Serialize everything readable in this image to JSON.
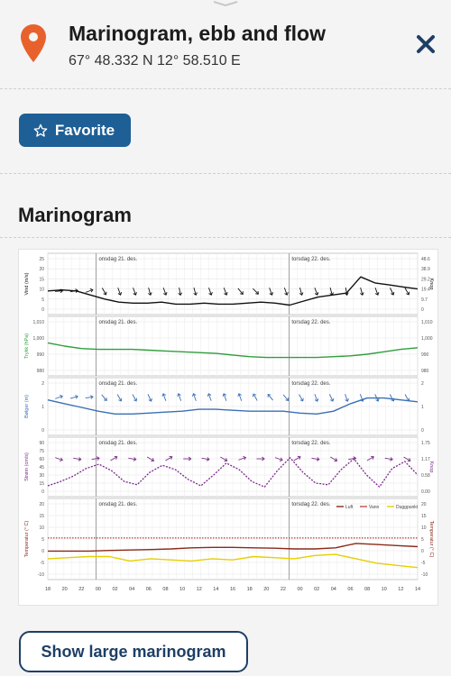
{
  "header": {
    "title": "Marinogram, ebb and flow",
    "coordinates": "67° 48.332 N 12° 58.510 E",
    "pin_icon": "location-pin-icon",
    "close_icon": "close-icon"
  },
  "favorite": {
    "label": "Favorite",
    "icon": "star-outline-icon"
  },
  "section_title": "Marinogram",
  "large_button_label": "Show large marinogram",
  "colors": {
    "accent": "#1e5f95",
    "pin": "#e8612c",
    "close": "#1e3f66",
    "wind": "#111111",
    "pressure": "#2f9e3c",
    "waves": "#3a6fb5",
    "current": "#7a2a8a",
    "air": "#8b2a1a",
    "water": "#c0504d",
    "dew": "#e6cf00"
  },
  "chart_data": {
    "type": "line",
    "day_labels": [
      "onsdag 21. des.",
      "torsdag 22. des."
    ],
    "hour_ticks": [
      "18",
      "20",
      "22",
      "00",
      "02",
      "04",
      "06",
      "08",
      "10",
      "12",
      "14",
      "16",
      "18",
      "20",
      "22",
      "00",
      "02",
      "04",
      "06",
      "08",
      "10",
      "12",
      "14"
    ],
    "panels": [
      {
        "name": "wind",
        "ylabel": "Vind (m/s)",
        "ylabel_right": "Knop",
        "left_ticks": [
          "25",
          "20",
          "15",
          "10",
          "5",
          "0"
        ],
        "right_ticks": [
          "48.6",
          "38.9",
          "29.2",
          "19.4",
          "9.7",
          "0"
        ],
        "ylim": [
          0,
          25
        ],
        "values": [
          9,
          9.5,
          9,
          7,
          5,
          3.5,
          3,
          3,
          3.5,
          2.5,
          2.5,
          3,
          2.5,
          2.5,
          3,
          3.5,
          3,
          2,
          4,
          6,
          7,
          8,
          16,
          13,
          12,
          11,
          10
        ]
      },
      {
        "name": "pressure",
        "ylabel": "Trykk (hPa)",
        "left_ticks": [
          "1,010",
          "1,000",
          "990",
          "980"
        ],
        "right_ticks": [
          "1,010",
          "1,000",
          "990",
          "980"
        ],
        "ylim": [
          980,
          1010
        ],
        "values": [
          997,
          995,
          993.5,
          993,
          993,
          993,
          992.5,
          992,
          991.5,
          991,
          990.5,
          989.5,
          988.5,
          988,
          988,
          988,
          988,
          988.5,
          989,
          990,
          991.5,
          993,
          994
        ]
      },
      {
        "name": "waves",
        "ylabel": "Bølger (m)",
        "left_ticks": [
          "2",
          "1",
          "0"
        ],
        "right_ticks": [
          "2",
          "1",
          "0"
        ],
        "ylim": [
          0,
          2.5
        ],
        "values": [
          1.6,
          1.4,
          1.2,
          1.0,
          0.85,
          0.85,
          0.9,
          0.95,
          1.0,
          1.1,
          1.1,
          1.05,
          1.0,
          1.0,
          1.0,
          0.9,
          0.85,
          1.0,
          1.4,
          1.7,
          1.7,
          1.6,
          1.5
        ]
      },
      {
        "name": "current",
        "ylabel": "Strøm (cm/s)",
        "ylabel_right": "Knop",
        "left_ticks": [
          "90",
          "75",
          "60",
          "45",
          "30",
          "15",
          "0"
        ],
        "right_ticks": [
          "1.75",
          "1.17",
          "0.58",
          "0.00"
        ],
        "ylim": [
          0,
          90
        ],
        "values": [
          10,
          18,
          28,
          42,
          50,
          38,
          18,
          12,
          35,
          48,
          40,
          22,
          10,
          30,
          52,
          40,
          18,
          8,
          38,
          62,
          35,
          15,
          12,
          40,
          60,
          30,
          8,
          42,
          55,
          30
        ]
      },
      {
        "name": "temperature",
        "ylabel": "Temperatur (° C)",
        "ylabel_right": "Temperatur (° C)",
        "left_ticks": [
          "20",
          "15",
          "10",
          "5",
          "0",
          "-5",
          "-10"
        ],
        "right_ticks": [
          "20",
          "15",
          "10",
          "5",
          "0",
          "-5",
          "-10"
        ],
        "ylim": [
          -10,
          22
        ],
        "legend": [
          "Luft",
          "Vann",
          "Duggpunkt"
        ],
        "legend_placement": "top-right",
        "series": [
          {
            "name": "Luft",
            "values": [
              0.5,
              0.5,
              0.5,
              0.8,
              1,
              1.2,
              1.5,
              2,
              2.2,
              2.2,
              2,
              1.8,
              1.5,
              1.5,
              2,
              4,
              3.5,
              3,
              2.5
            ]
          },
          {
            "name": "Vann",
            "values": [
              6.5,
              6.5,
              6.5,
              6.5,
              6.5,
              6.5,
              6.5,
              6.5,
              6.5,
              6.5,
              6.5,
              6.5,
              6.5,
              6.5,
              6.5,
              6.5,
              6.5,
              6.5,
              6.5
            ]
          },
          {
            "name": "Duggpunkt",
            "values": [
              -3,
              -2.5,
              -2,
              -2,
              -4,
              -3,
              -3.5,
              -4,
              -3,
              -3.5,
              -2,
              -2.5,
              -3,
              -1.5,
              -1,
              -3,
              -5,
              -6,
              -7
            ]
          }
        ]
      }
    ]
  }
}
